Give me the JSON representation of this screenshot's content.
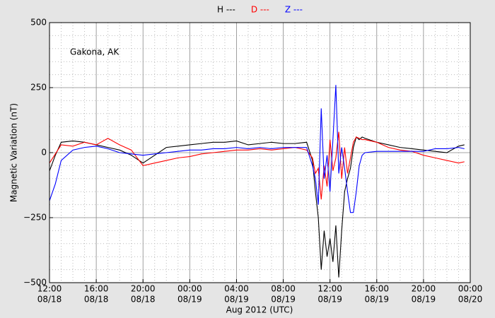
{
  "chart_data": {
    "type": "line",
    "legend_position": "top",
    "annotation": "Gakona, AK",
    "ylabel": "Magnetic Variation (nT)",
    "xlabel": "Aug 2012 (UTC)",
    "x": [
      "2012-08-18T12:00",
      "2012-08-18T12:30",
      "2012-08-18T13:00",
      "2012-08-18T14:00",
      "2012-08-18T15:00",
      "2012-08-18T16:00",
      "2012-08-18T17:00",
      "2012-08-18T18:00",
      "2012-08-18T19:00",
      "2012-08-18T20:00",
      "2012-08-18T21:00",
      "2012-08-18T22:00",
      "2012-08-18T23:00",
      "2012-08-19T00:00",
      "2012-08-19T01:00",
      "2012-08-19T02:00",
      "2012-08-19T03:00",
      "2012-08-19T04:00",
      "2012-08-19T05:00",
      "2012-08-19T06:00",
      "2012-08-19T07:00",
      "2012-08-19T08:00",
      "2012-08-19T09:00",
      "2012-08-19T10:00",
      "2012-08-19T10:30",
      "2012-08-19T10:45",
      "2012-08-19T11:00",
      "2012-08-19T11:15",
      "2012-08-19T11:30",
      "2012-08-19T11:45",
      "2012-08-19T12:00",
      "2012-08-19T12:15",
      "2012-08-19T12:30",
      "2012-08-19T12:45",
      "2012-08-19T13:00",
      "2012-08-19T13:15",
      "2012-08-19T13:30",
      "2012-08-19T13:45",
      "2012-08-19T14:00",
      "2012-08-19T14:15",
      "2012-08-19T14:30",
      "2012-08-19T14:45",
      "2012-08-19T15:00",
      "2012-08-19T16:00",
      "2012-08-19T17:00",
      "2012-08-19T18:00",
      "2012-08-19T19:00",
      "2012-08-19T20:00",
      "2012-08-19T21:00",
      "2012-08-19T22:00",
      "2012-08-19T23:00",
      "2012-08-19T23:30"
    ],
    "series": [
      {
        "name": "H ---",
        "color": "#000000",
        "values": [
          -70,
          -10,
          40,
          45,
          40,
          30,
          20,
          10,
          -10,
          -40,
          -10,
          20,
          25,
          30,
          35,
          40,
          40,
          45,
          30,
          35,
          40,
          35,
          35,
          40,
          -30,
          -150,
          -250,
          -450,
          -300,
          -400,
          -330,
          -420,
          -280,
          -480,
          -300,
          -150,
          -100,
          -60,
          20,
          60,
          50,
          60,
          55,
          40,
          30,
          20,
          15,
          10,
          5,
          0,
          25,
          30
        ]
      },
      {
        "name": "D ---",
        "color": "#ff0000",
        "values": [
          -40,
          -5,
          30,
          25,
          40,
          30,
          55,
          30,
          10,
          -50,
          -40,
          -30,
          -20,
          -15,
          -5,
          0,
          5,
          10,
          10,
          15,
          10,
          15,
          20,
          10,
          -20,
          -80,
          -60,
          -180,
          -50,
          -130,
          50,
          -70,
          -20,
          80,
          -100,
          20,
          -80,
          -20,
          40,
          60,
          55,
          50,
          50,
          40,
          20,
          10,
          5,
          -10,
          -20,
          -30,
          -40,
          -35
        ]
      },
      {
        "name": "Z ---",
        "color": "#0000ff",
        "values": [
          -185,
          -120,
          -30,
          10,
          20,
          25,
          15,
          0,
          -5,
          -10,
          -5,
          0,
          5,
          10,
          10,
          15,
          15,
          20,
          15,
          20,
          15,
          20,
          20,
          20,
          -50,
          -100,
          -200,
          170,
          -100,
          -10,
          -150,
          50,
          260,
          -80,
          20,
          -60,
          -150,
          -230,
          -230,
          -150,
          -50,
          -10,
          0,
          5,
          5,
          5,
          5,
          5,
          15,
          15,
          20,
          15
        ]
      }
    ],
    "xlim": [
      "2012-08-18T12:00",
      "2012-08-20T00:00"
    ],
    "xticks": [
      {
        "value": "2012-08-18T12:00",
        "label": [
          "12:00",
          "08/18"
        ]
      },
      {
        "value": "2012-08-18T16:00",
        "label": [
          "16:00",
          "08/18"
        ]
      },
      {
        "value": "2012-08-18T20:00",
        "label": [
          "20:00",
          "08/18"
        ]
      },
      {
        "value": "2012-08-19T00:00",
        "label": [
          "00:00",
          "08/19"
        ]
      },
      {
        "value": "2012-08-19T04:00",
        "label": [
          "04:00",
          "08/19"
        ]
      },
      {
        "value": "2012-08-19T08:00",
        "label": [
          "08:00",
          "08/19"
        ]
      },
      {
        "value": "2012-08-19T12:00",
        "label": [
          "12:00",
          "08/19"
        ]
      },
      {
        "value": "2012-08-19T16:00",
        "label": [
          "16:00",
          "08/19"
        ]
      },
      {
        "value": "2012-08-19T20:00",
        "label": [
          "20:00",
          "08/19"
        ]
      },
      {
        "value": "2012-08-20T00:00",
        "label": [
          "00:00",
          "08/20"
        ]
      }
    ],
    "ylim": [
      -500,
      500
    ],
    "yticks": [
      {
        "value": -500,
        "label": "−500"
      },
      {
        "value": -250,
        "label": "−250"
      },
      0,
      250,
      500
    ],
    "grid": true
  }
}
